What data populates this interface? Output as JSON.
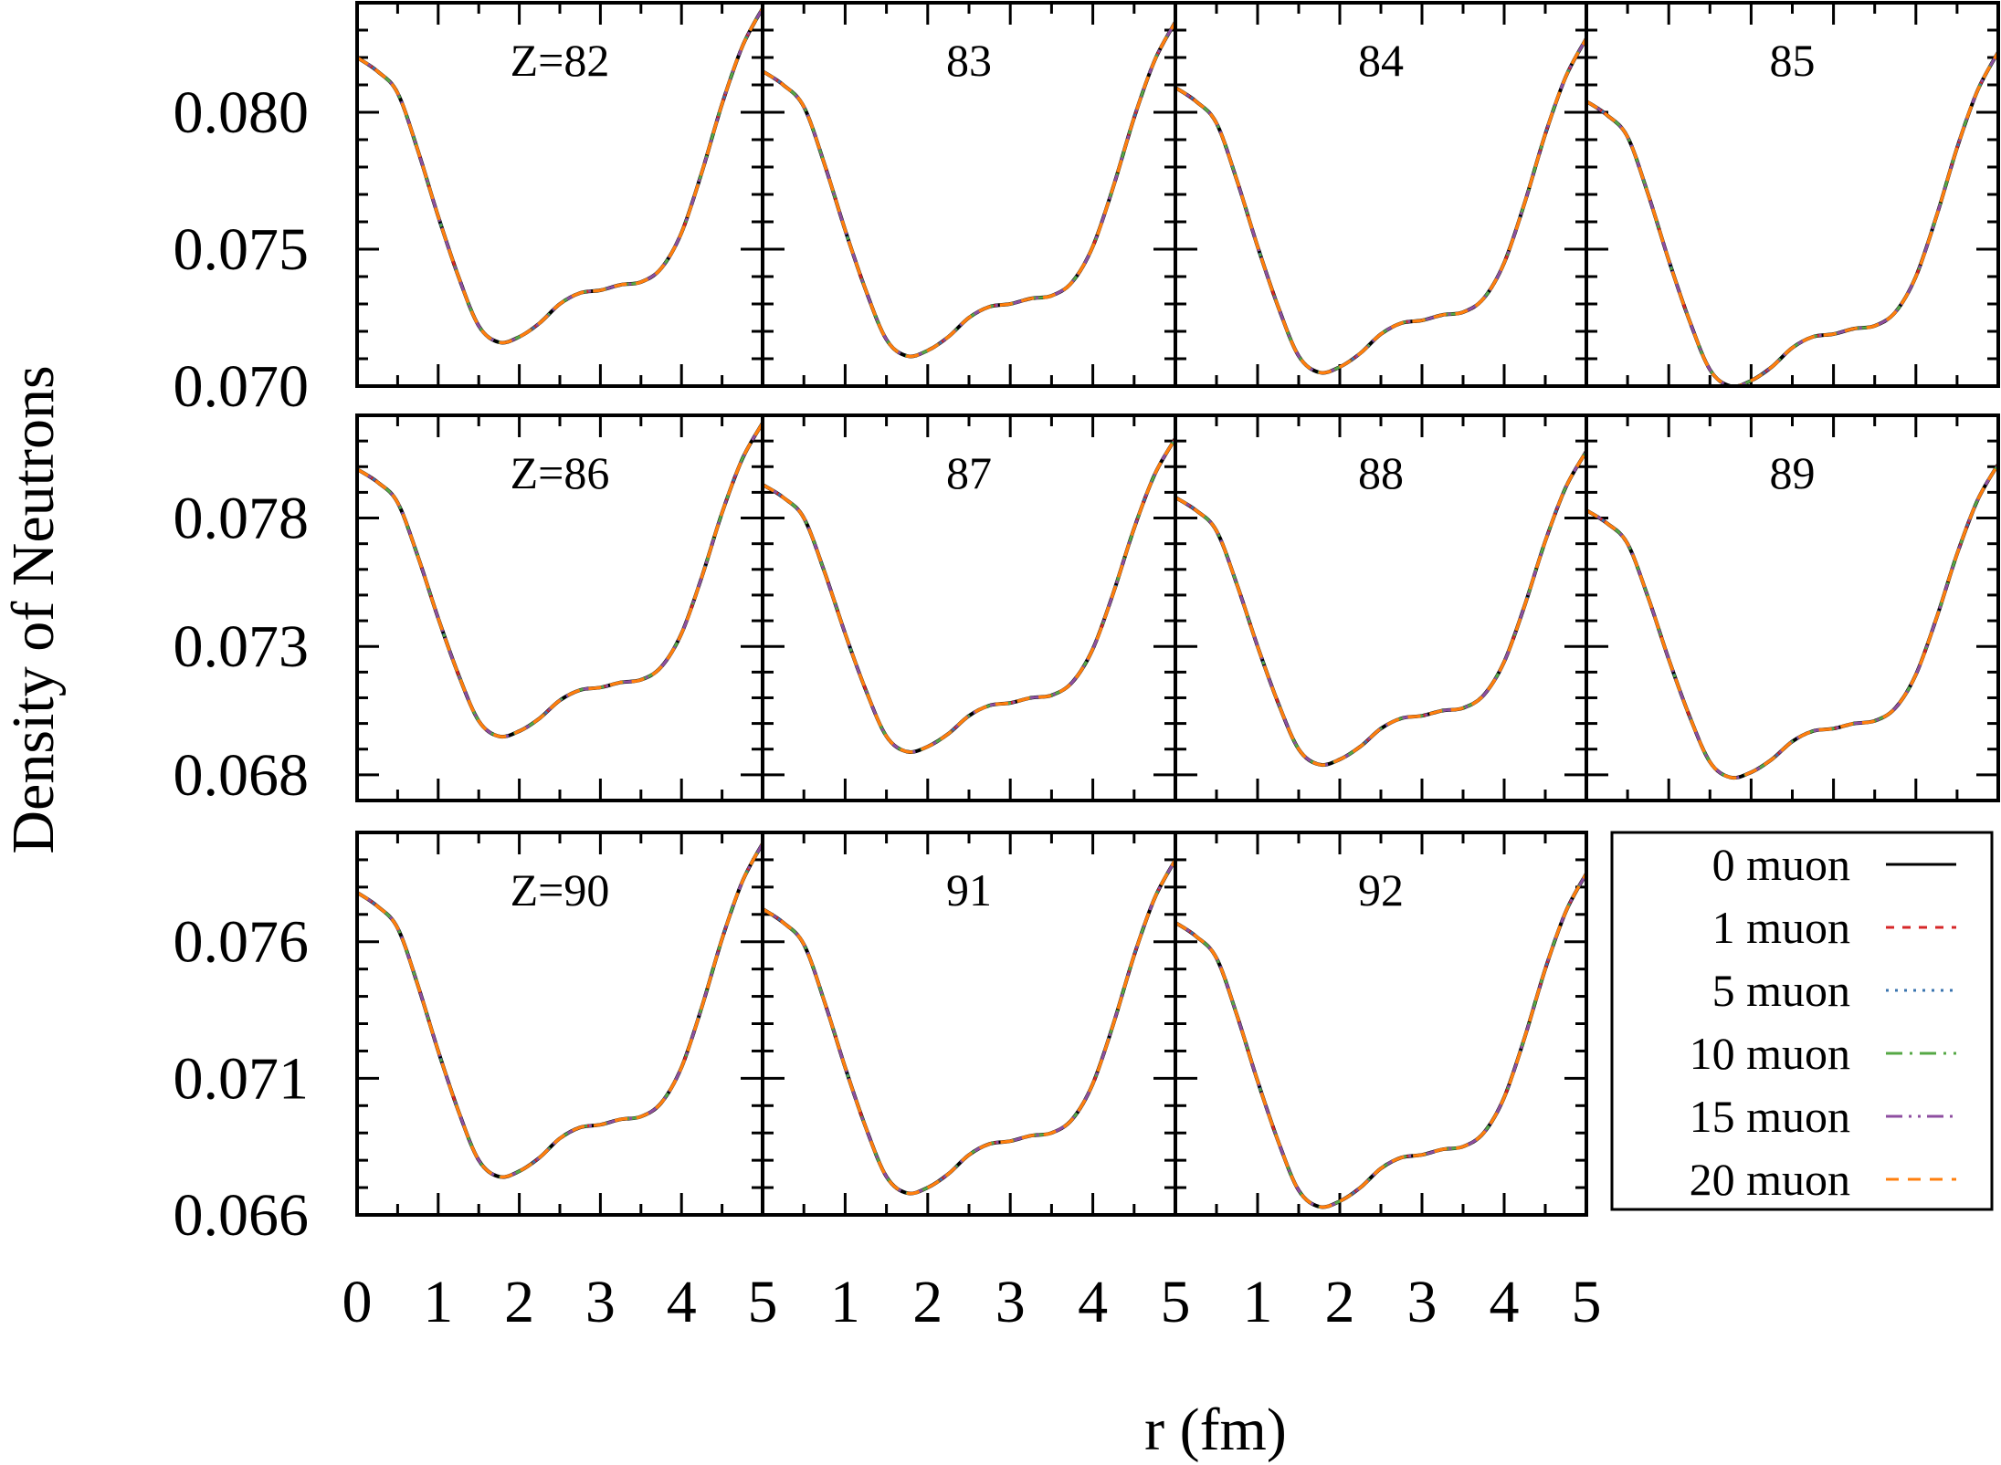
{
  "chart_data": {
    "type": "line",
    "title": "",
    "xlabel": "r (fm)",
    "ylabel": "Density of Neutrons",
    "xlim": [
      0,
      5
    ],
    "x_tick_labels": [
      "0",
      "1",
      "2",
      "3",
      "4",
      "5",
      "1",
      "2",
      "3",
      "4",
      "5",
      "1",
      "2",
      "3",
      "4",
      "5"
    ],
    "legend_placement": "bottom-right (empty 12th panel slot)",
    "series": [
      {
        "name": "0 muon",
        "color": "#000000",
        "style": "solid"
      },
      {
        "name": "1 muon",
        "color": "#d62728",
        "style": "dashed"
      },
      {
        "name": "5 muon",
        "color": "#3b75af",
        "style": "dotted"
      },
      {
        "name": "10 muon",
        "color": "#55a845",
        "style": "dash-dot"
      },
      {
        "name": "15 muon",
        "color": "#8e4ea0",
        "style": "dash-dot-dot"
      },
      {
        "name": "20 muon",
        "color": "#ff7f0e",
        "style": "long-dash"
      }
    ],
    "rows": [
      {
        "ylim": [
          0.07,
          0.084
        ],
        "y_tick_labels": [
          "0.070",
          "0.075",
          "0.080"
        ],
        "y_ticks": [
          0.07,
          0.075,
          0.08
        ]
      },
      {
        "ylim": [
          0.067,
          0.082
        ],
        "y_tick_labels": [
          "0.068",
          "0.073",
          "0.078"
        ],
        "y_ticks": [
          0.068,
          0.073,
          0.078
        ]
      },
      {
        "ylim": [
          0.066,
          0.08
        ],
        "y_tick_labels": [
          "0.066",
          "0.071",
          "0.076"
        ],
        "y_ticks": [
          0.066,
          0.071,
          0.076
        ]
      }
    ],
    "x": [
      0,
      0.25,
      0.5,
      0.75,
      1,
      1.25,
      1.5,
      1.75,
      2,
      2.25,
      2.5,
      2.75,
      3,
      3.25,
      3.5,
      3.75,
      4,
      4.25,
      4.5,
      4.75,
      5
    ],
    "panels": [
      {
        "row": 0,
        "col": 0,
        "label": "Z=82",
        "values": [
          0.082,
          0.0815,
          0.0807,
          0.0786,
          0.0762,
          0.074,
          0.0722,
          0.0716,
          0.0718,
          0.0723,
          0.073,
          0.0734,
          0.0735,
          0.0737,
          0.0738,
          0.0743,
          0.0756,
          0.0778,
          0.0803,
          0.0824,
          0.0838
        ]
      },
      {
        "row": 0,
        "col": 1,
        "label": "83",
        "values": [
          0.0815,
          0.081,
          0.0802,
          0.0781,
          0.0757,
          0.0735,
          0.0717,
          0.0711,
          0.0713,
          0.0718,
          0.0725,
          0.0729,
          0.073,
          0.0732,
          0.0733,
          0.0738,
          0.0751,
          0.0773,
          0.0798,
          0.0819,
          0.0833
        ]
      },
      {
        "row": 0,
        "col": 2,
        "label": "84",
        "values": [
          0.0809,
          0.0804,
          0.0796,
          0.0775,
          0.0751,
          0.0729,
          0.0711,
          0.0705,
          0.0707,
          0.0712,
          0.0719,
          0.0723,
          0.0724,
          0.0726,
          0.0727,
          0.0732,
          0.0745,
          0.0767,
          0.0792,
          0.0813,
          0.0827
        ]
      },
      {
        "row": 0,
        "col": 3,
        "label": "85",
        "values": [
          0.0804,
          0.0799,
          0.0791,
          0.077,
          0.0746,
          0.0724,
          0.0706,
          0.07,
          0.0702,
          0.0707,
          0.0714,
          0.0718,
          0.0719,
          0.0721,
          0.0722,
          0.0727,
          0.074,
          0.0762,
          0.0787,
          0.0808,
          0.0822
        ]
      },
      {
        "row": 1,
        "col": 0,
        "label": "Z=86",
        "values": [
          0.0799,
          0.0794,
          0.0786,
          0.0765,
          0.0741,
          0.0719,
          0.0701,
          0.0695,
          0.0697,
          0.0702,
          0.0709,
          0.0713,
          0.0714,
          0.0716,
          0.0717,
          0.0722,
          0.0735,
          0.0757,
          0.0782,
          0.0803,
          0.0817
        ]
      },
      {
        "row": 1,
        "col": 1,
        "label": "87",
        "values": [
          0.0793,
          0.0788,
          0.078,
          0.0759,
          0.0735,
          0.0713,
          0.0695,
          0.0689,
          0.0691,
          0.0696,
          0.0703,
          0.0707,
          0.0708,
          0.071,
          0.0711,
          0.0716,
          0.0729,
          0.0751,
          0.0776,
          0.0797,
          0.0811
        ]
      },
      {
        "row": 1,
        "col": 2,
        "label": "88",
        "values": [
          0.0788,
          0.0783,
          0.0775,
          0.0754,
          0.073,
          0.0708,
          0.069,
          0.0684,
          0.0686,
          0.0691,
          0.0698,
          0.0702,
          0.0703,
          0.0705,
          0.0706,
          0.0711,
          0.0724,
          0.0746,
          0.0771,
          0.0792,
          0.0806
        ]
      },
      {
        "row": 1,
        "col": 3,
        "label": "89",
        "values": [
          0.0783,
          0.0778,
          0.077,
          0.0749,
          0.0725,
          0.0703,
          0.0685,
          0.0679,
          0.0681,
          0.0686,
          0.0693,
          0.0697,
          0.0698,
          0.07,
          0.0701,
          0.0706,
          0.0719,
          0.0741,
          0.0766,
          0.0787,
          0.0801
        ]
      },
      {
        "row": 2,
        "col": 0,
        "label": "Z=90",
        "values": [
          0.0778,
          0.0773,
          0.0765,
          0.0744,
          0.072,
          0.0698,
          0.068,
          0.0674,
          0.0676,
          0.0681,
          0.0688,
          0.0692,
          0.0693,
          0.0695,
          0.0696,
          0.0701,
          0.0714,
          0.0736,
          0.0761,
          0.0782,
          0.0796
        ]
      },
      {
        "row": 2,
        "col": 1,
        "label": "91",
        "values": [
          0.0772,
          0.0767,
          0.0759,
          0.0738,
          0.0714,
          0.0692,
          0.0674,
          0.0668,
          0.067,
          0.0675,
          0.0682,
          0.0686,
          0.0687,
          0.0689,
          0.069,
          0.0695,
          0.0708,
          0.073,
          0.0755,
          0.0776,
          0.079
        ]
      },
      {
        "row": 2,
        "col": 2,
        "label": "92",
        "values": [
          0.0767,
          0.0762,
          0.0754,
          0.0733,
          0.0709,
          0.0687,
          0.0669,
          0.0663,
          0.0665,
          0.067,
          0.0677,
          0.0681,
          0.0682,
          0.0684,
          0.0685,
          0.069,
          0.0703,
          0.0725,
          0.075,
          0.0771,
          0.0785
        ]
      }
    ]
  }
}
